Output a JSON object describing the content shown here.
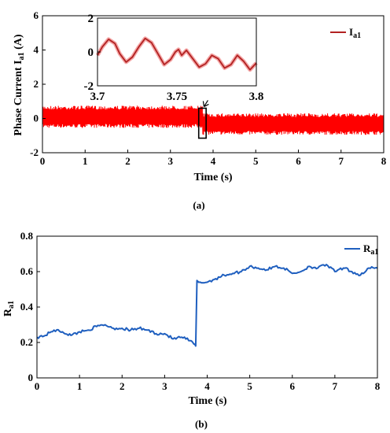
{
  "chart_data": [
    {
      "type": "line",
      "caption": "(a)",
      "xlabel": "Time (s)",
      "ylabel": "Phase Current I",
      "ylabel_sub": "a1",
      "ylabel_unit": " (A)",
      "xlim": [
        0,
        8
      ],
      "ylim": [
        -2,
        6
      ],
      "xticks": [
        "0",
        "1",
        "2",
        "3",
        "4",
        "5",
        "6",
        "7",
        "8"
      ],
      "yticks": [
        "-2",
        "0",
        "2",
        "4",
        "6"
      ],
      "legend_position": "top-right",
      "colors": {
        "signal": "#ff0000",
        "legend_line": "#b22222",
        "inset_line": "#b22222",
        "inset_glow": "#f4a6a6"
      },
      "series": [
        {
          "name": "I",
          "name_sub": "a1",
          "segments": [
            {
              "x_range": [
                0,
                3.75
              ],
              "mean": 0.1,
              "band": [
                -0.55,
                0.75
              ]
            },
            {
              "x_range": [
                3.75,
                8
              ],
              "mean": -0.3,
              "band": [
                -0.95,
                0.3
              ]
            }
          ]
        }
      ],
      "zoom_box": {
        "x_range": [
          3.7,
          3.8
        ],
        "y_range": [
          -1.15,
          0.6
        ]
      },
      "inset": {
        "xlim": [
          3.7,
          3.8
        ],
        "ylim": [
          -2,
          2
        ],
        "xticks": [
          "3.7",
          "3.75",
          "3.8"
        ],
        "yticks": [
          "-2",
          "0",
          "2"
        ],
        "x": [
          3.7,
          3.703,
          3.707,
          3.711,
          3.714,
          3.718,
          3.722,
          3.726,
          3.73,
          3.734,
          3.738,
          3.742,
          3.746,
          3.749,
          3.751,
          3.753,
          3.756,
          3.76,
          3.764,
          3.768,
          3.772,
          3.776,
          3.78,
          3.784,
          3.788,
          3.792,
          3.796,
          3.8
        ],
        "y": [
          -0.2,
          0.3,
          0.75,
          0.5,
          -0.1,
          -0.6,
          -0.3,
          0.3,
          0.8,
          0.55,
          -0.1,
          -0.75,
          -0.45,
          0.0,
          0.15,
          -0.2,
          0.1,
          -0.4,
          -0.9,
          -0.7,
          -0.2,
          -0.4,
          -0.95,
          -0.75,
          -0.2,
          -0.55,
          -1.05,
          -0.65
        ]
      }
    },
    {
      "type": "line",
      "caption": "(b)",
      "xlabel": "Time (s)",
      "ylabel": "R",
      "ylabel_sub": "a1",
      "xlim": [
        0,
        8
      ],
      "ylim": [
        0,
        0.8
      ],
      "xticks": [
        "0",
        "1",
        "2",
        "3",
        "4",
        "5",
        "6",
        "7",
        "8"
      ],
      "yticks": [
        "0",
        "0.2",
        "0.4",
        "0.6",
        "0.8"
      ],
      "legend_position": "top-right",
      "colors": {
        "line": "#1f5fbf"
      },
      "series": [
        {
          "name": "R",
          "name_sub": "a1",
          "x": [
            0,
            0.2,
            0.4,
            0.6,
            0.8,
            1.0,
            1.2,
            1.4,
            1.6,
            1.8,
            2.0,
            2.2,
            2.4,
            2.6,
            2.8,
            3.0,
            3.2,
            3.4,
            3.6,
            3.73,
            3.76,
            3.8,
            4.0,
            4.2,
            4.4,
            4.6,
            4.8,
            5.0,
            5.2,
            5.4,
            5.6,
            5.8,
            6.0,
            6.2,
            6.4,
            6.6,
            6.8,
            7.0,
            7.2,
            7.4,
            7.6,
            7.8,
            8.0
          ],
          "y": [
            0.23,
            0.24,
            0.27,
            0.26,
            0.24,
            0.26,
            0.27,
            0.29,
            0.3,
            0.28,
            0.28,
            0.27,
            0.28,
            0.27,
            0.25,
            0.25,
            0.22,
            0.23,
            0.21,
            0.18,
            0.55,
            0.54,
            0.54,
            0.56,
            0.58,
            0.59,
            0.6,
            0.63,
            0.62,
            0.61,
            0.63,
            0.62,
            0.59,
            0.6,
            0.63,
            0.62,
            0.64,
            0.6,
            0.62,
            0.6,
            0.58,
            0.62,
            0.62
          ]
        }
      ]
    }
  ]
}
